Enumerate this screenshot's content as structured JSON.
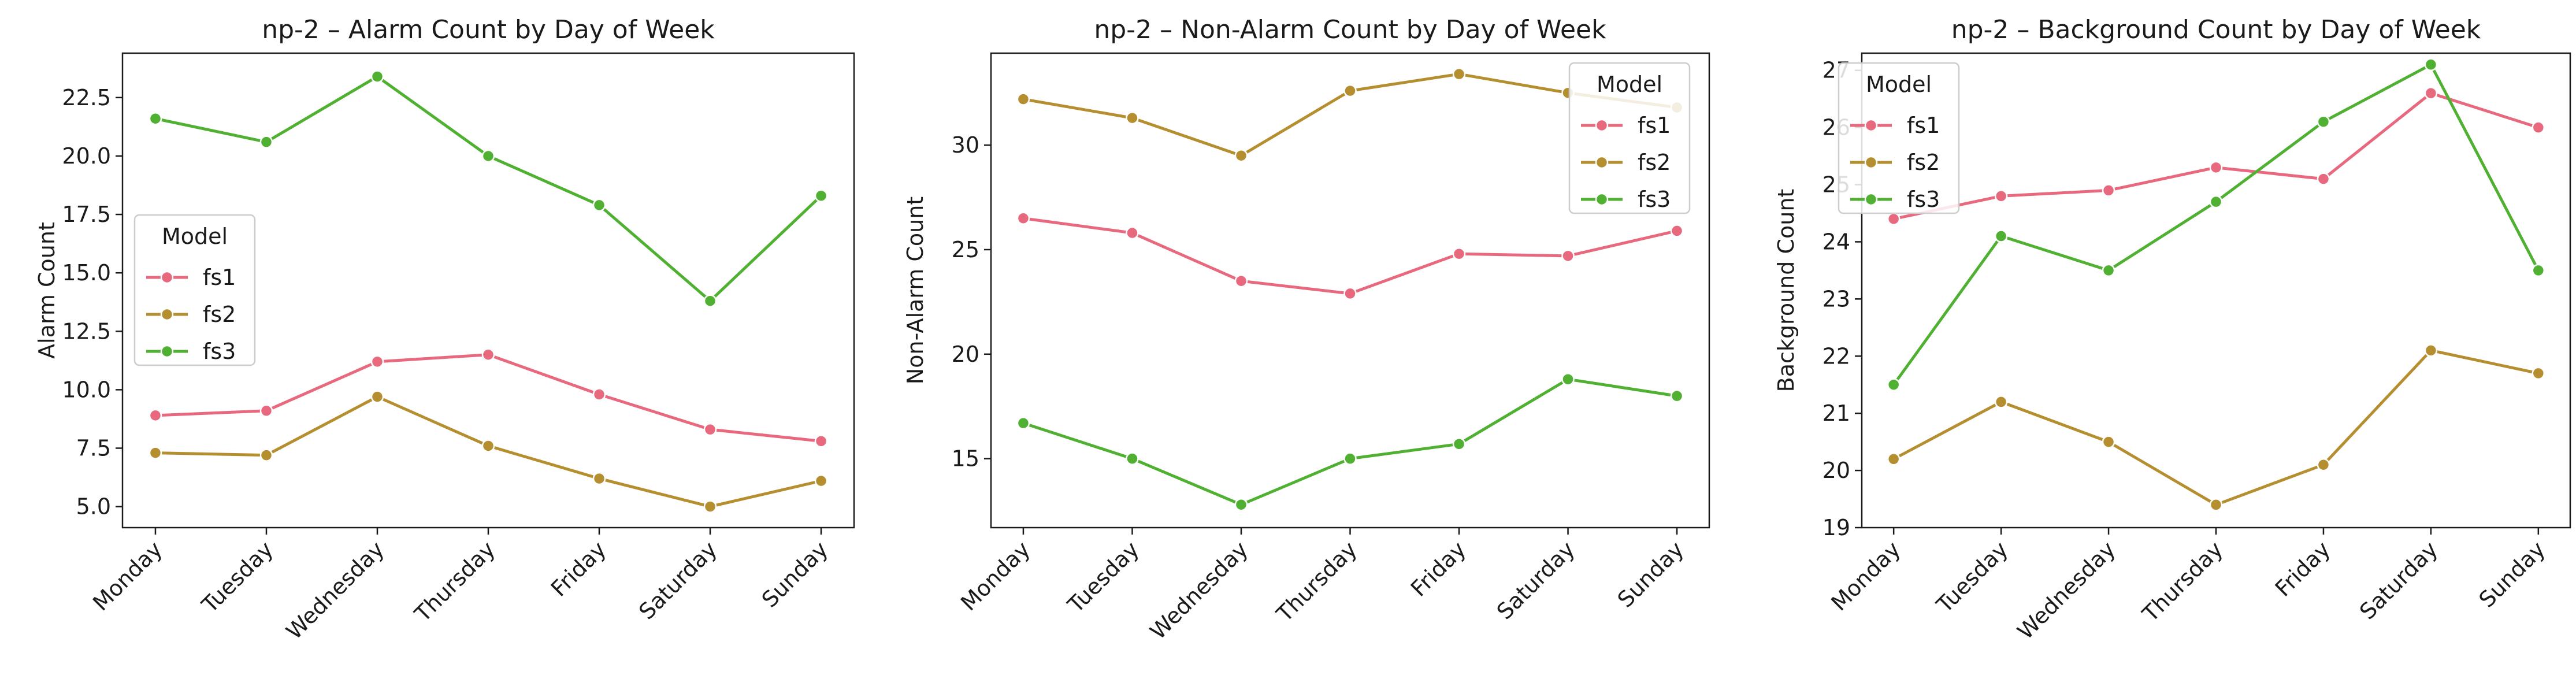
{
  "colors": {
    "fs1": "#e8697e",
    "fs2": "#b58e2f",
    "fs3": "#4fb031"
  },
  "chart_data": [
    {
      "type": "line",
      "title": "np-2 – Alarm Count by Day of Week",
      "xlabel": "",
      "ylabel": "Alarm Count",
      "categories": [
        "Monday",
        "Tuesday",
        "Wednesday",
        "Thursday",
        "Friday",
        "Saturday",
        "Sunday"
      ],
      "ylim": [
        4.1,
        24.4
      ],
      "yticks": [
        "5.0",
        "7.5",
        "10.0",
        "12.5",
        "15.0",
        "17.5",
        "20.0",
        "22.5"
      ],
      "legend": {
        "title": "Model",
        "placement": "center-left"
      },
      "series": [
        {
          "name": "fs1",
          "values": [
            8.9,
            9.1,
            11.2,
            11.5,
            9.8,
            8.3,
            7.8
          ]
        },
        {
          "name": "fs2",
          "values": [
            7.3,
            7.2,
            9.7,
            7.6,
            6.2,
            5.0,
            6.1
          ]
        },
        {
          "name": "fs3",
          "values": [
            21.6,
            20.6,
            23.4,
            20.0,
            17.9,
            13.8,
            18.3
          ]
        }
      ]
    },
    {
      "type": "line",
      "title": "np-2 – Non-Alarm Count by Day of Week",
      "xlabel": "",
      "ylabel": "Non-Alarm Count",
      "categories": [
        "Monday",
        "Tuesday",
        "Wednesday",
        "Thursday",
        "Friday",
        "Saturday",
        "Sunday"
      ],
      "ylim": [
        11.7,
        34.4
      ],
      "yticks": [
        "15",
        "20",
        "25",
        "30"
      ],
      "legend": {
        "title": "Model",
        "placement": "top-right"
      },
      "series": [
        {
          "name": "fs1",
          "values": [
            26.5,
            25.8,
            23.5,
            22.9,
            24.8,
            24.7,
            25.9
          ]
        },
        {
          "name": "fs2",
          "values": [
            32.2,
            31.3,
            29.5,
            32.6,
            33.4,
            32.5,
            31.8
          ]
        },
        {
          "name": "fs3",
          "values": [
            16.7,
            15.0,
            12.8,
            15.0,
            15.7,
            18.8,
            18.0
          ]
        }
      ]
    },
    {
      "type": "line",
      "title": "np-2 – Background Count by Day of Week",
      "xlabel": "",
      "ylabel": "Background Count",
      "categories": [
        "Monday",
        "Tuesday",
        "Wednesday",
        "Thursday",
        "Friday",
        "Saturday",
        "Sunday"
      ],
      "ylim": [
        19.0,
        27.3
      ],
      "yticks": [
        "19",
        "20",
        "21",
        "22",
        "23",
        "24",
        "25",
        "26",
        "27"
      ],
      "legend": {
        "title": "Model",
        "placement": "top-left"
      },
      "series": [
        {
          "name": "fs1",
          "values": [
            24.4,
            24.8,
            24.9,
            25.3,
            25.1,
            26.6,
            26.0
          ]
        },
        {
          "name": "fs2",
          "values": [
            20.2,
            21.2,
            20.5,
            19.4,
            20.1,
            22.1,
            21.7
          ]
        },
        {
          "name": "fs3",
          "values": [
            21.5,
            24.1,
            23.5,
            24.7,
            26.1,
            27.1,
            23.5
          ]
        }
      ]
    }
  ]
}
